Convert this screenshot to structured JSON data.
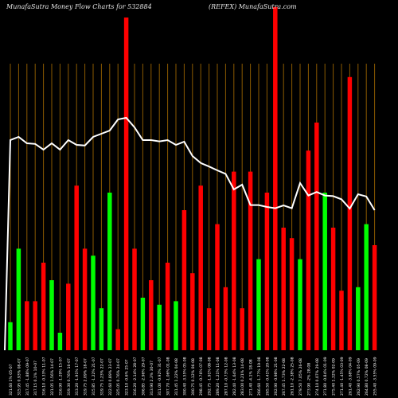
{
  "header": {
    "left": "MunafaSutra  Money Flow  Charts for 532884",
    "right": "(REFEX) MunafaSutra.com"
  },
  "chart_data": {
    "type": "bar",
    "colors": {
      "up": "#00ff00",
      "down": "#ff0000",
      "line": "#ffffff",
      "grid": "#8b5a00",
      "background": "#000000"
    },
    "categories": [
      "321.60 1% 05-07",
      "315.95 0.93% 08-07",
      "317.45 -1.88% 09-07",
      "317.15 0.1% 10-07",
      "316.10 -0.33% 11-07",
      "321.05 1.56% 14-07",
      "316.90 -1.29% 15-07",
      "319.30 0.76% 16-07",
      "313.20 -1.91% 17-07",
      "319.75 2.09% 18-07",
      "315.85 -1.22% 21-07",
      "319.75 1.23% 22-07",
      "322.60 0.89% 23-07",
      "325.05 0.76% 24-07",
      "323.10 -0.6% 25-07",
      "316.20 -2.14% 28-07",
      "306.85 -2.96% 29-07",
      "313.90 2.3% 30-07",
      "311.00 -0.92% 31-07",
      "307.70 -1.06% 01-08",
      "311.45 1.22% 04-08",
      "300.40 -3.55% 05-08",
      "300.75 0.12% 06-08",
      "298.45 -0.76% 07-08",
      "292.75 -1.91% 08-08",
      "289.20 -1.21% 11-08",
      "287.10 -0.73% 12-08",
      "282.40 -1.64% 13-08",
      "283.00 0.21% 14-08",
      "271.40 -4.1% 18-08",
      "266.60 -1.77% 19-08",
      "265.50 -0.41% 20-08",
      "262.90 -0.98% 21-08",
      "267.45 1.73% 22-08",
      "261.10 -2.38% 25-08",
      "279.50 7.05% 26-08",
      "273.90 -2% 28-08",
      "274.10 0.07% 29-08",
      "271.80 -0.84% 01-09",
      "275.40 1.32% 02-09",
      "271.40 -1.45% 03-09",
      "261.40 -3.68% 04-09",
      "262.90 0.57% 05-09",
      "264.80 0.72% 08-09",
      "255.40 -3.55% 09-09"
    ],
    "bar_direction": [
      "up",
      "up",
      "down",
      "down",
      "down",
      "up",
      "up",
      "down",
      "down",
      "down",
      "up",
      "up",
      "up",
      "down",
      "down",
      "down",
      "up",
      "down",
      "up",
      "down",
      "up",
      "down",
      "down",
      "down",
      "down",
      "down",
      "down",
      "down",
      "down",
      "down",
      "up",
      "down",
      "down",
      "down",
      "down",
      "up",
      "down",
      "down",
      "up",
      "down",
      "down",
      "down",
      "up",
      "up",
      "down"
    ],
    "bar_values": [
      8,
      29,
      14,
      14,
      25,
      20,
      5,
      19,
      47,
      29,
      27,
      12,
      45,
      6,
      95,
      29,
      15,
      20,
      13,
      25,
      14,
      40,
      22,
      47,
      12,
      36,
      18,
      51,
      12,
      51,
      26,
      45,
      98,
      35,
      32,
      26,
      57,
      65,
      45,
      35,
      17,
      78,
      18,
      36,
      30
    ],
    "line_values": [
      66,
      67,
      65,
      64.8,
      63,
      65,
      63,
      66,
      64.5,
      64.3,
      67,
      68,
      69,
      72.5,
      73,
      70,
      66,
      66,
      65.6,
      66,
      64.5,
      65.5,
      61,
      58.8,
      57.7,
      56.5,
      55.4,
      50.5,
      52,
      45.6,
      45.6,
      45,
      44.6,
      45.5,
      44.6,
      52.5,
      48.6,
      49.7,
      48.6,
      48.4,
      47.4,
      44.5,
      49,
      48.3,
      44
    ]
  }
}
